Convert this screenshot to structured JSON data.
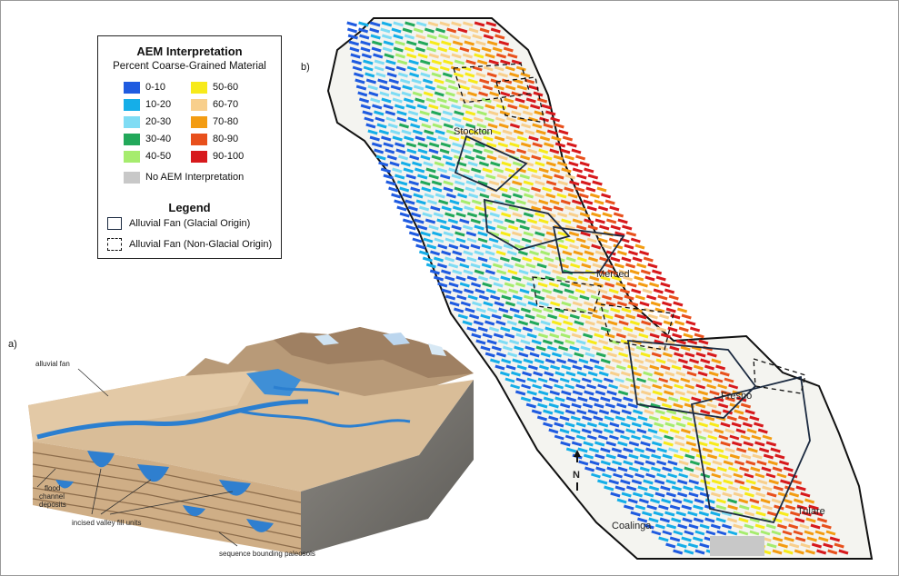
{
  "panels": {
    "a_label": "a)",
    "b_label": "b)"
  },
  "legend": {
    "title": "AEM Interpretation",
    "subtitle": "Percent Coarse-Grained Material",
    "classes": [
      {
        "label": "0-10",
        "color": "#1f5be0"
      },
      {
        "label": "10-20",
        "color": "#15aee8"
      },
      {
        "label": "20-30",
        "color": "#7fdcf4"
      },
      {
        "label": "30-40",
        "color": "#22a85a"
      },
      {
        "label": "40-50",
        "color": "#a6ec6e"
      },
      {
        "label": "50-60",
        "color": "#f7ea1a"
      },
      {
        "label": "60-70",
        "color": "#f8cf8c"
      },
      {
        "label": "70-80",
        "color": "#f39c12"
      },
      {
        "label": "80-90",
        "color": "#e8501c"
      },
      {
        "label": "90-100",
        "color": "#d7191c"
      }
    ],
    "no_data": {
      "label": "No AEM Interpretation",
      "color": "#c8c8c8"
    },
    "legend_title": "Legend",
    "glacial_fan": "Alluvial Fan (Glacial Origin)",
    "nonglacial_fan": "Alluvial Fan (Non-Glacial Origin)"
  },
  "diagram_labels": {
    "alluvial_fan": "alluvial fan",
    "flood_channel": [
      "flood",
      "channel",
      "deposits"
    ],
    "incised_valley": "incised valley fill units",
    "paleosols": "sequence bounding paleosols"
  },
  "map": {
    "cities": {
      "stockton": "Stockton",
      "merced": "Merced",
      "fresno": "Fresno",
      "tulare": "Tulare",
      "coalinga": "Coalinga"
    },
    "north_arrow": "N"
  }
}
